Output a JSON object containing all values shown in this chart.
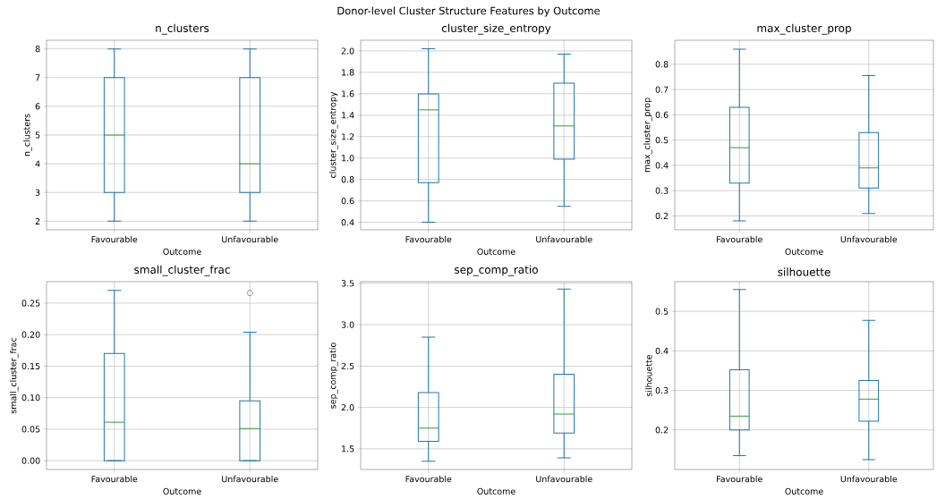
{
  "chart_data": [
    {
      "type": "box",
      "title": "n_clusters",
      "xlabel": "Outcome",
      "ylabel": "n_clusters",
      "annotations": [
        "Donor-level Cluster Structure Features by Outcome"
      ],
      "categories": [
        "Favourable",
        "Unfavourable"
      ],
      "color": "#1f77b4",
      "grid": true,
      "ylim": [
        1.7,
        8.3
      ],
      "yticks": [
        2,
        3,
        4,
        5,
        6,
        7,
        8
      ],
      "boxes": [
        {
          "low": 2,
          "q1": 3,
          "median": 5,
          "q3": 7,
          "high": 8
        },
        {
          "low": 2,
          "q1": 3,
          "median": 4,
          "q3": 7,
          "high": 8
        }
      ]
    },
    {
      "type": "box",
      "title": "cluster_size_entropy",
      "xlabel": "Outcome",
      "ylabel": "cluster_size_entropy",
      "categories": [
        "Favourable",
        "Unfavourable"
      ],
      "color": "#1f77b4",
      "grid": true,
      "ylim": [
        0.33,
        2.1
      ],
      "yticks": [
        0.4,
        0.6,
        0.8,
        {
          "value": 1,
          "label": "1.0"
        },
        1.2,
        1.4,
        1.6,
        1.8,
        {
          "value": 2,
          "label": "2.0"
        }
      ],
      "boxes": [
        {
          "low": 0.4,
          "q1": 0.77,
          "median": 1.45,
          "q3": 1.6,
          "high": 2.02
        },
        {
          "low": 0.55,
          "q1": 0.99,
          "median": 1.3,
          "q3": 1.7,
          "high": 1.97
        }
      ]
    },
    {
      "type": "box",
      "title": "max_cluster_prop",
      "xlabel": "Outcome",
      "ylabel": "max_cluster_prop",
      "categories": [
        "Favourable",
        "Unfavourable"
      ],
      "color": "#1f77b4",
      "grid": true,
      "ylim": [
        0.145,
        0.895
      ],
      "yticks": [
        0.2,
        0.3,
        0.4,
        0.5,
        0.6,
        0.7,
        0.8
      ],
      "boxes": [
        {
          "low": 0.18,
          "q1": 0.33,
          "median": 0.47,
          "q3": 0.63,
          "high": 0.86
        },
        {
          "low": 0.21,
          "q1": 0.31,
          "median": 0.39,
          "q3": 0.53,
          "high": 0.755
        }
      ]
    },
    {
      "type": "box",
      "title": "small_cluster_frac",
      "xlabel": "Outcome",
      "ylabel": "small_cluster_frac",
      "categories": [
        "Favourable",
        "Unfavourable"
      ],
      "color": "#1f77b4",
      "grid": true,
      "ylim": [
        -0.014,
        0.284
      ],
      "yticks": [
        {
          "value": 0,
          "label": "0.00"
        },
        0.05,
        {
          "value": 0.1,
          "label": "0.10"
        },
        0.15,
        {
          "value": 0.2,
          "label": "0.20"
        },
        0.25
      ],
      "boxes": [
        {
          "low": 0,
          "q1": 0,
          "median": 0.061,
          "q3": 0.17,
          "high": 0.27
        },
        {
          "low": 0,
          "q1": 0,
          "median": 0.051,
          "q3": 0.095,
          "high": 0.204,
          "outliers": [
            0.266
          ]
        }
      ]
    },
    {
      "type": "box",
      "title": "sep_comp_ratio",
      "xlabel": "Outcome",
      "ylabel": "sep_comp_ratio",
      "categories": [
        "Favourable",
        "Unfavourable"
      ],
      "color": "#1f77b4",
      "grid": true,
      "ylim": [
        1.25,
        3.52
      ],
      "yticks": [
        1.5,
        {
          "value": 2,
          "label": "2.0"
        },
        2.5,
        {
          "value": 3,
          "label": "3.0"
        },
        3.5
      ],
      "boxes": [
        {
          "low": 1.35,
          "q1": 1.59,
          "median": 1.75,
          "q3": 2.18,
          "high": 2.85
        },
        {
          "low": 1.39,
          "q1": 1.69,
          "median": 1.92,
          "q3": 2.4,
          "high": 3.43
        }
      ]
    },
    {
      "type": "box",
      "title": "silhouette",
      "xlabel": "Outcome",
      "ylabel": "silhouette",
      "categories": [
        "Favourable",
        "Unfavourable"
      ],
      "color": "#1f77b4",
      "grid": true,
      "ylim": [
        0.1,
        0.575
      ],
      "yticks": [
        0.2,
        0.3,
        0.4,
        0.5
      ],
      "boxes": [
        {
          "low": 0.135,
          "q1": 0.2,
          "median": 0.235,
          "q3": 0.352,
          "high": 0.555
        },
        {
          "low": 0.125,
          "q1": 0.222,
          "median": 0.278,
          "q3": 0.325,
          "high": 0.477
        }
      ]
    }
  ]
}
